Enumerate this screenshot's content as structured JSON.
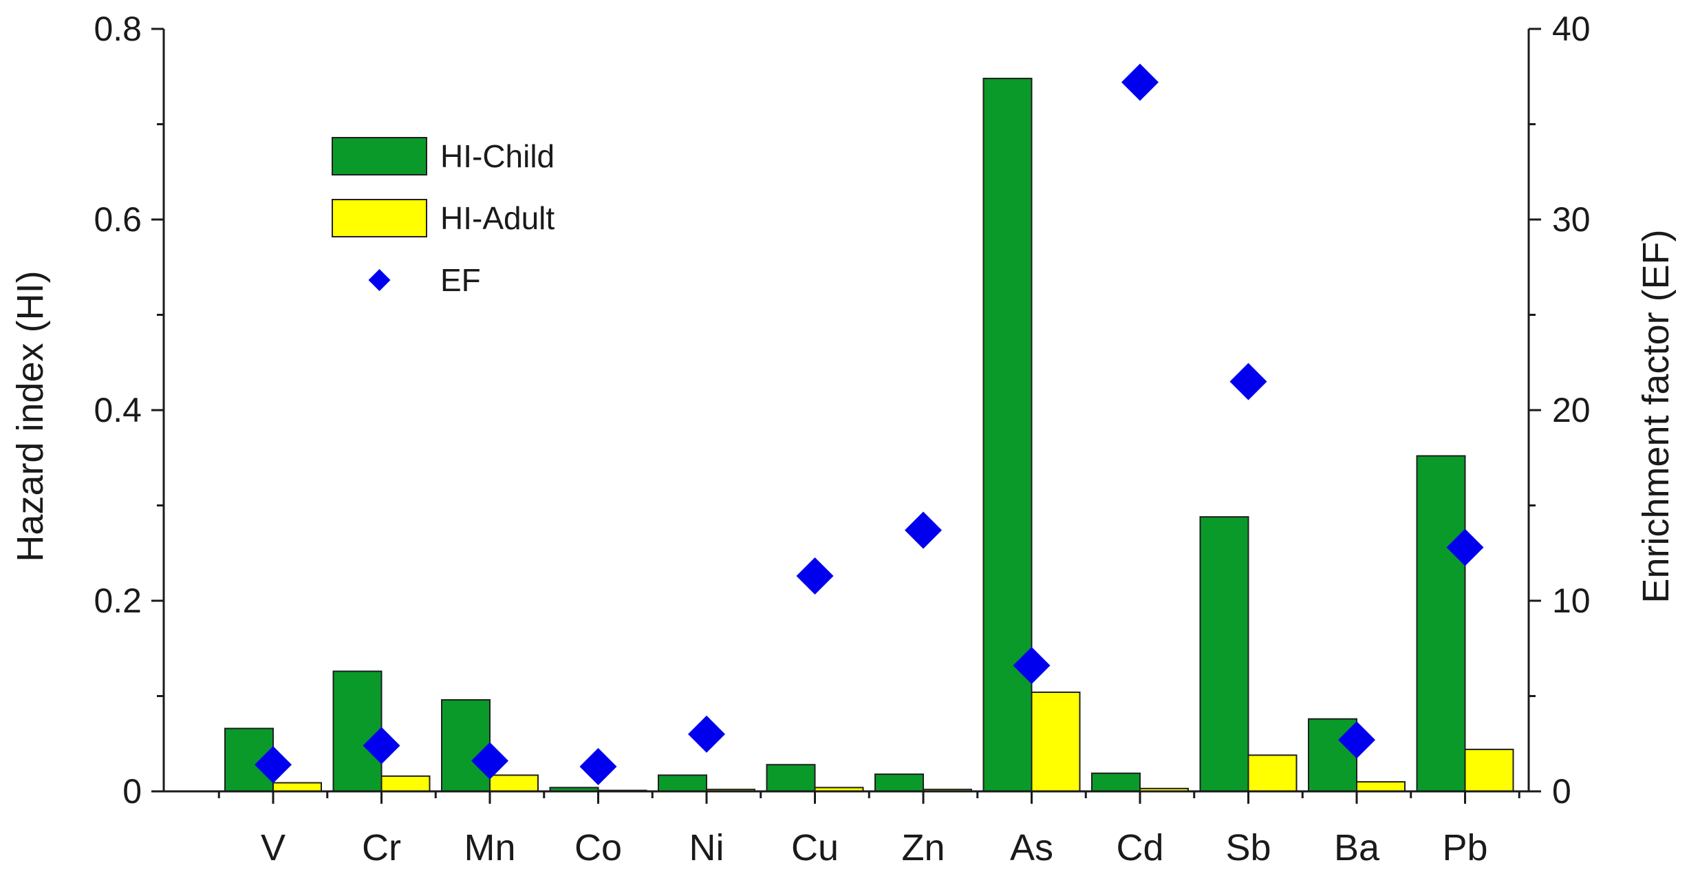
{
  "chart_data": {
    "type": "bar",
    "categories": [
      "V",
      "Cr",
      "Mn",
      "Co",
      "Ni",
      "Cu",
      "Zn",
      "As",
      "Cd",
      "Sb",
      "Ba",
      "Pb"
    ],
    "series": [
      {
        "name": "HI-Child",
        "kind": "bar",
        "axis": "left",
        "color": "#0a9a2a",
        "values": [
          0.066,
          0.126,
          0.096,
          0.004,
          0.017,
          0.028,
          0.018,
          0.748,
          0.019,
          0.288,
          0.076,
          0.352
        ]
      },
      {
        "name": "HI-Adult",
        "kind": "bar",
        "axis": "left",
        "color": "#ffff00",
        "values": [
          0.009,
          0.016,
          0.017,
          0.001,
          0.002,
          0.004,
          0.002,
          0.104,
          0.003,
          0.038,
          0.01,
          0.044
        ]
      },
      {
        "name": "EF",
        "kind": "scatter",
        "marker": "diamond",
        "axis": "right",
        "color": "#0000ee",
        "values": [
          1.4,
          2.4,
          1.6,
          1.3,
          3.0,
          11.3,
          13.7,
          6.6,
          37.2,
          21.5,
          2.7,
          12.8
        ]
      }
    ],
    "ylabel": "Hazard index (HI)",
    "y2label": "Enrichment factor (EF)",
    "ylim": [
      0,
      0.8
    ],
    "y2lim": [
      0,
      40
    ],
    "yticks": [
      "0",
      "0.2",
      "0.4",
      "0.6",
      "0.8"
    ],
    "y2ticks": [
      "0",
      "10",
      "20",
      "30",
      "40"
    ],
    "legend_position": "top-left",
    "grid": false
  }
}
